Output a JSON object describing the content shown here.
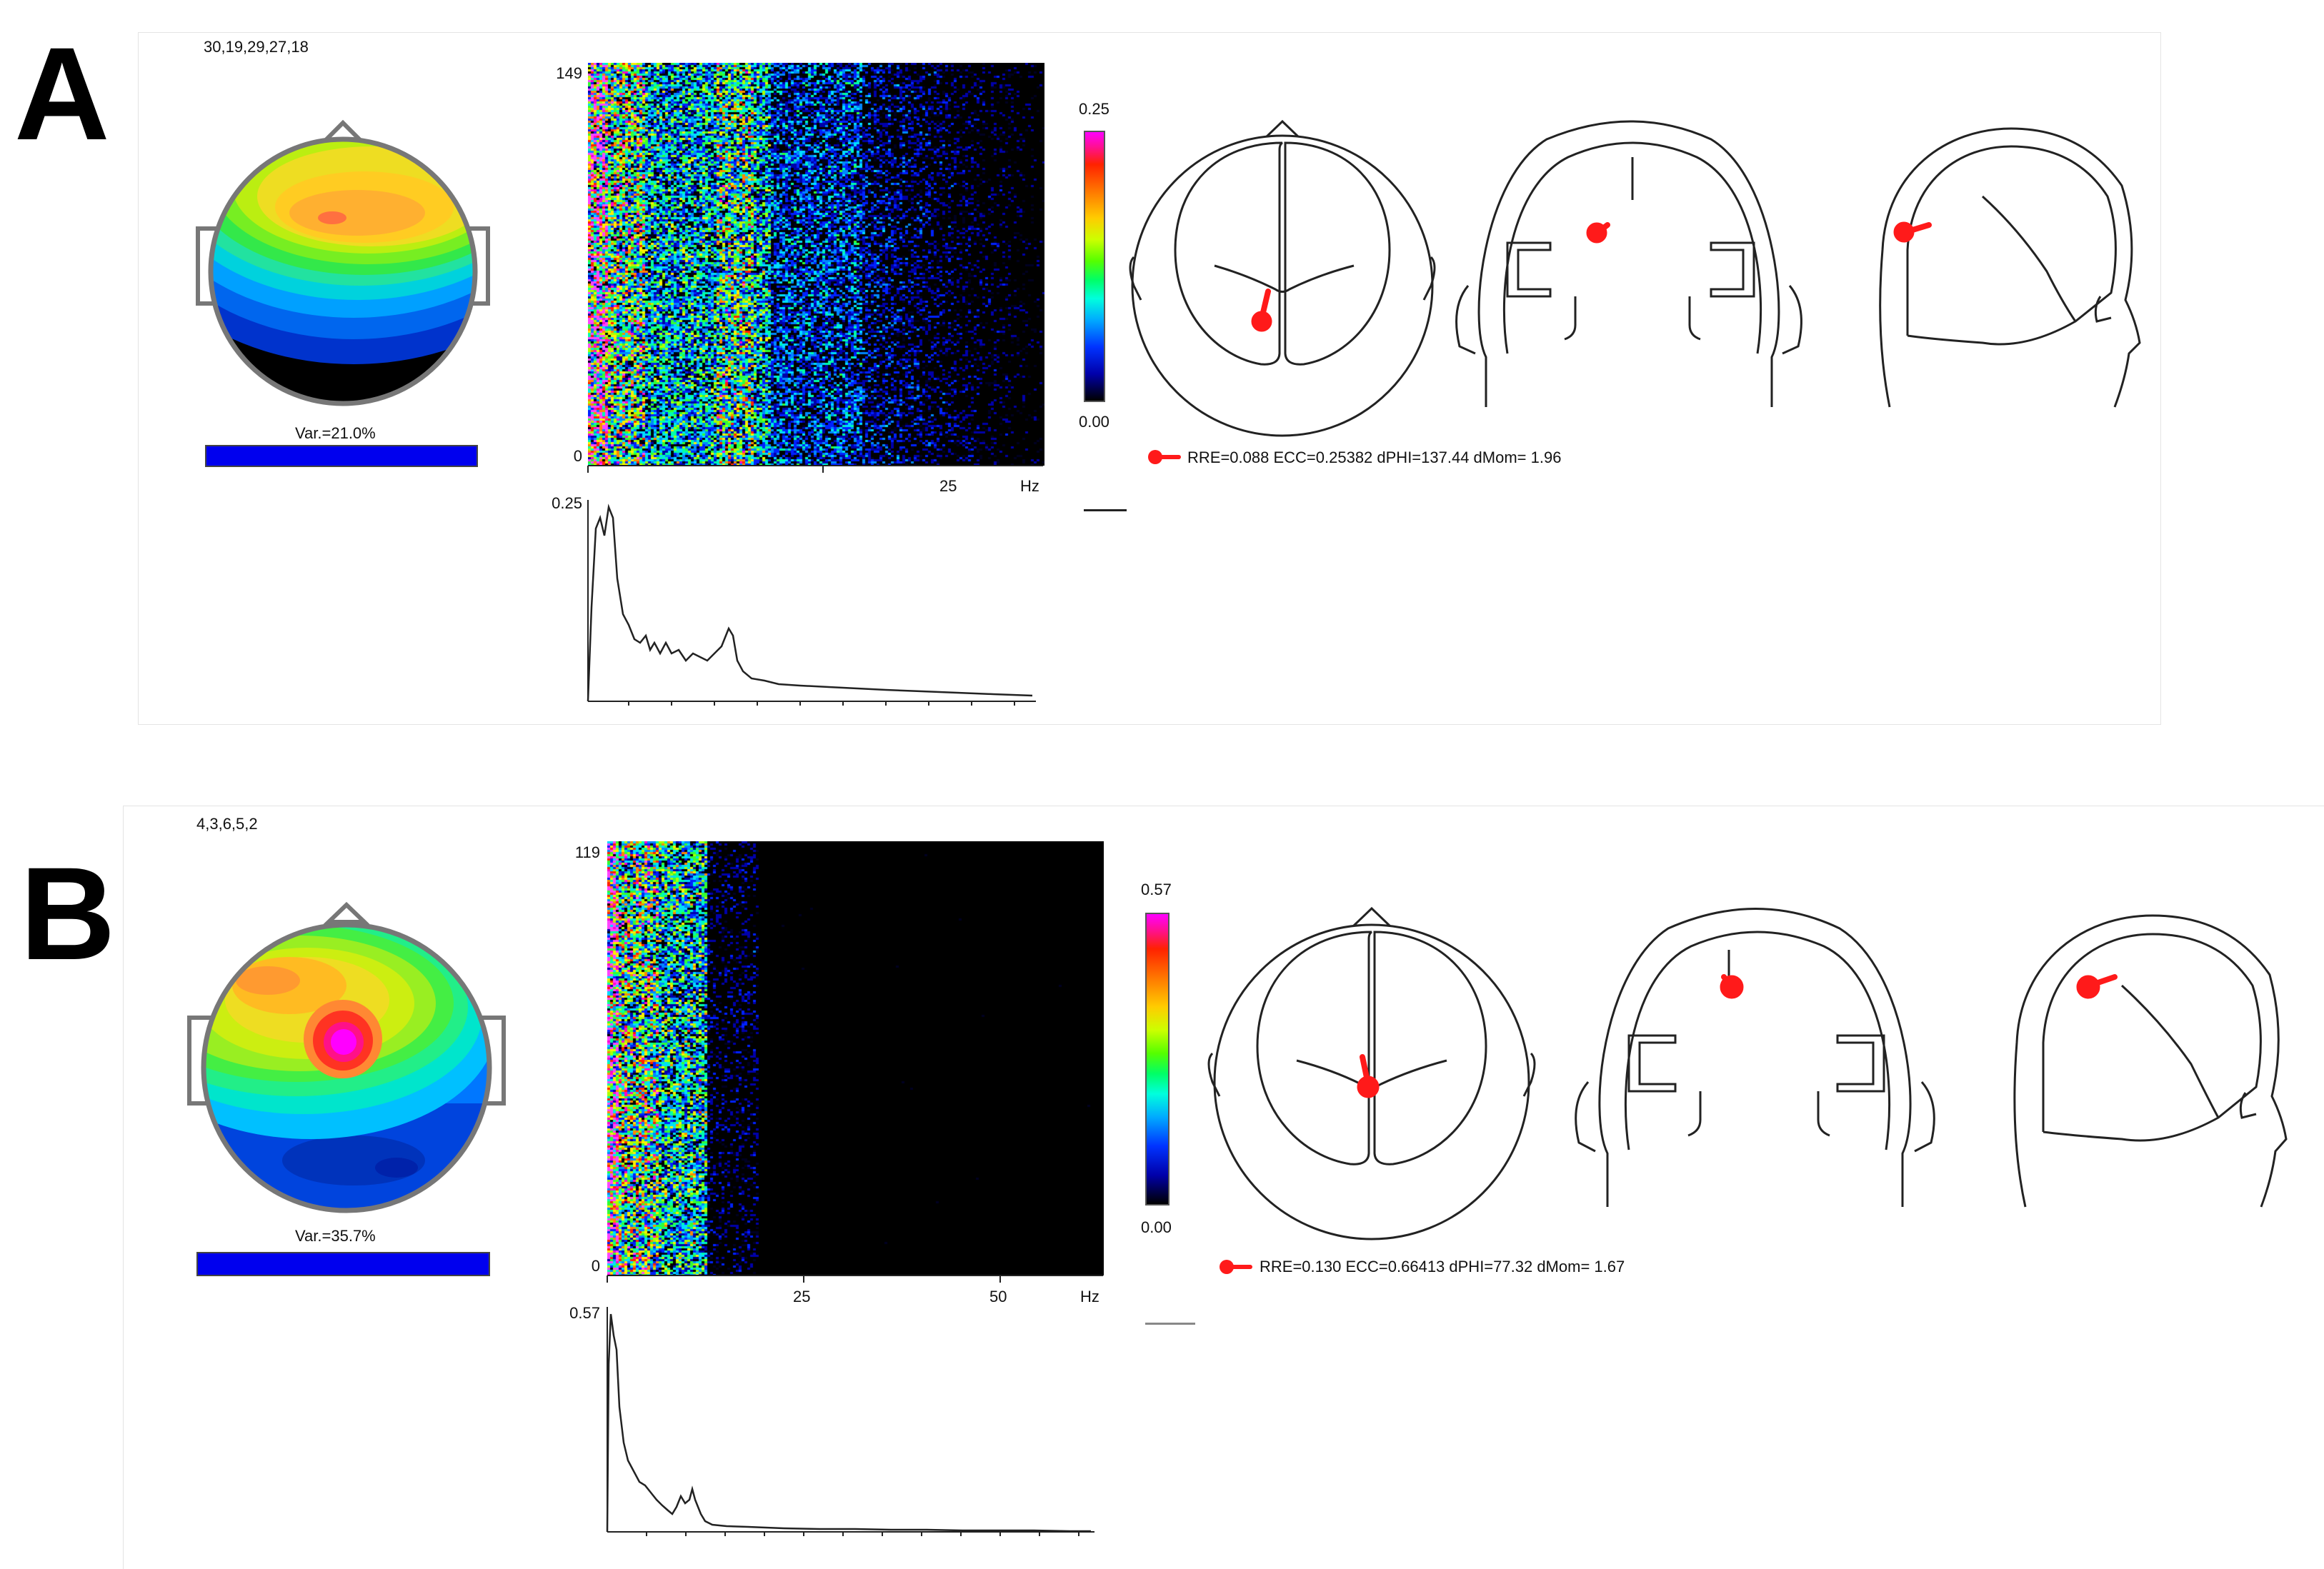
{
  "panels": [
    {
      "letter": "A",
      "components": "30,19,29,27,18",
      "variance": "Var.=21.0%",
      "spectrogram": {
        "y_max": "149",
        "y_min": "0",
        "x_ticks": [
          "25"
        ],
        "x_unit": "Hz"
      },
      "colorbar": {
        "max": "0.25",
        "min": "0.00"
      },
      "spectrum": {
        "y_max": "0.25"
      },
      "dipole_stats": "RRE=0.088 ECC=0.25382 dPHI=137.44 dMom= 1.96"
    },
    {
      "letter": "B",
      "components": "4,3,6,5,2",
      "variance": "Var.=35.7%",
      "spectrogram": {
        "y_max": "119",
        "y_min": "0",
        "x_ticks": [
          "25",
          "50"
        ],
        "x_unit": "Hz"
      },
      "colorbar": {
        "max": "0.57",
        "min": "0.00"
      },
      "spectrum": {
        "y_max": "0.57"
      },
      "dipole_stats": "RRE=0.130 ECC=0.66413 dPHI=77.32 dMom= 1.67"
    }
  ]
}
